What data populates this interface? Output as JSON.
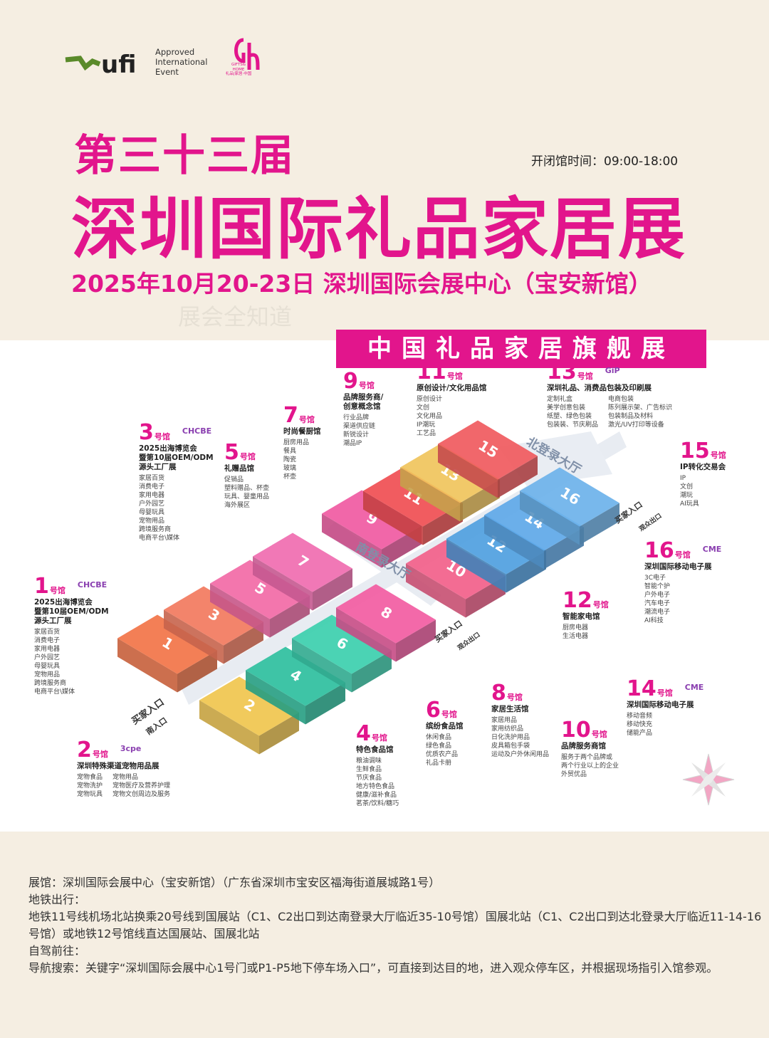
{
  "header": {
    "ufi": "ufi",
    "ufi_text": [
      "Approved",
      "International",
      "Event"
    ],
    "gh_text": [
      "GIFTS&",
      "HOME",
      "礼品|家居·中国"
    ],
    "edition": "第三十三届",
    "title": "深圳国际礼品家居展",
    "hours": "开闭馆时间：09:00-18:00",
    "date_venue": "2025年10月20-23日 深圳国际会展中心（宝安新馆）",
    "watermark": "展会全知道"
  },
  "banner": "中国礼品家居旗舰展",
  "map": {
    "north_hall": "北登录大厅",
    "south_hall": "南登录大厅",
    "buyer_entry": "买家入口",
    "visitor_exit": "观众出口",
    "south_entry": "南入口",
    "blocks": [
      {
        "label": "1",
        "color": "#f27448"
      },
      {
        "label": "3",
        "color": "#f27a5e"
      },
      {
        "label": "5",
        "color": "#f26aa6"
      },
      {
        "label": "7",
        "color": "#f06cb0"
      },
      {
        "label": "9",
        "color": "#f05aa2"
      },
      {
        "label": "11",
        "color": "#f04e52"
      },
      {
        "label": "13",
        "color": "#f0c45c"
      },
      {
        "label": "15",
        "color": "#f05a5e"
      },
      {
        "label": "2",
        "color": "#f0c64e"
      },
      {
        "label": "4",
        "color": "#2ebf9e"
      },
      {
        "label": "6",
        "color": "#3ccfae"
      },
      {
        "label": "8",
        "color": "#f25ca2"
      },
      {
        "label": "10",
        "color": "#f2608a"
      },
      {
        "label": "12",
        "color": "#4f9fe0"
      },
      {
        "label": "14",
        "color": "#5ea8e8"
      },
      {
        "label": "16",
        "color": "#6cb2ea"
      }
    ]
  },
  "hall_suffix": "号馆",
  "halls": [
    {
      "number": "1",
      "badge": "CHCBE",
      "name": [
        "2025出海博览会",
        "暨第10届OEM/ODM",
        "源头工厂展"
      ],
      "columns": [
        [
          "家居百货",
          "消费电子",
          "家用电器",
          "户外园艺",
          "母婴玩具",
          "宠物用品",
          "跨境服务商",
          "电商平台\\媒体"
        ]
      ]
    },
    {
      "number": "2",
      "badge": "3cpe",
      "name": [
        "深圳特殊渠道宠物用品展"
      ],
      "columns": [
        [
          "宠物食品",
          "宠物洗护",
          "宠物玩具"
        ],
        [
          "宠物用品",
          "宠物医疗及营养护理",
          "宠物文创周边及服务"
        ]
      ]
    },
    {
      "number": "3",
      "badge": "CHCBE",
      "name": [
        "2025出海博览会",
        "暨第10届OEM/ODM",
        "源头工厂展"
      ],
      "columns": [
        [
          "家居百货",
          "消费电子",
          "家用电器",
          "户外园艺",
          "母婴玩具",
          "宠物用品",
          "跨境服务商",
          "电商平台\\媒体"
        ]
      ]
    },
    {
      "number": "4",
      "name": [
        "特色食品馆"
      ],
      "columns": [
        [
          "粮油调味",
          "生鲜食品",
          "节庆食品",
          "地方特色食品",
          "健康/滋补食品",
          "茗茶/饮料/糖巧"
        ]
      ]
    },
    {
      "number": "5",
      "name": [
        "礼赠品馆"
      ],
      "columns": [
        [
          "促销品",
          "塑料赠品、杯壶",
          "玩具、婴童用品",
          "海外展区"
        ]
      ]
    },
    {
      "number": "6",
      "name": [
        "缤纷食品馆"
      ],
      "columns": [
        [
          "休闲食品",
          "绿色食品",
          "优质农产品",
          "礼品卡册"
        ]
      ]
    },
    {
      "number": "7",
      "name": [
        "时尚餐厨馆"
      ],
      "columns": [
        [
          "厨房用品",
          "餐具",
          "陶瓷",
          "玻璃",
          "杯壶"
        ]
      ]
    },
    {
      "number": "8",
      "name": [
        "家居生活馆"
      ],
      "columns": [
        [
          "家居用品",
          "家用纺织品",
          "日化洗护用品",
          "皮具箱包手袋",
          "运动及户外休闲用品"
        ]
      ]
    },
    {
      "number": "9",
      "name": [
        "品牌服务商/",
        "创意概念馆"
      ],
      "columns": [
        [
          "行业品牌",
          "渠道供应链",
          "新锐设计",
          "潮品IP"
        ]
      ]
    },
    {
      "number": "10",
      "name": [
        "品牌服务商馆"
      ],
      "columns": [
        [
          "服务于两个品牌或",
          "两个行业以上的企业",
          "外贸优品"
        ]
      ]
    },
    {
      "number": "11",
      "name": [
        "原创设计/文化用品馆"
      ],
      "columns": [
        [
          "原创设计",
          "文创",
          "文化用品",
          "IP潮玩",
          "工艺品"
        ]
      ]
    },
    {
      "number": "12",
      "name": [
        "智能家电馆"
      ],
      "columns": [
        [
          "厨房电器",
          "生活电器"
        ]
      ]
    },
    {
      "number": "13",
      "badge": "GiP",
      "name": [
        "深圳礼品、消费品包装及印刷展"
      ],
      "columns": [
        [
          "定制礼盒",
          "美学创意包装",
          "纸塑、绿色包装",
          "包装装、节庆刷品"
        ],
        [
          "电商包装",
          "陈列展示架、广告标识",
          "包装制品及材料",
          "激光/UV打印等设备"
        ]
      ]
    },
    {
      "number": "14",
      "badge": "CME",
      "name": [
        "深圳国际移动电子展"
      ],
      "columns": [
        [
          "移动音频",
          "移动快充",
          "储能产品"
        ]
      ]
    },
    {
      "number": "15",
      "name": [
        "IP转化交易会"
      ],
      "columns": [
        [
          "IP",
          "文创",
          "潮玩",
          "AI玩具"
        ]
      ]
    },
    {
      "number": "16",
      "badge": "CME",
      "name": [
        "深圳国际移动电子展"
      ],
      "columns": [
        [
          "3C电子",
          "智能个护",
          "户外电子",
          "汽车电子",
          "潮流电子",
          "AI科技"
        ]
      ]
    }
  ],
  "footer": [
    "展馆：深圳国际会展中心（宝安新馆）（广东省深圳市宝安区福海街道展城路1号）",
    "地铁出行：",
    "地铁11号线机场北站换乘20号线到国展站（C1、C2出口到达南登录大厅临近35-10号馆）国展北站（C1、C2出口到达北登录大厅临近11-14-16号馆）或地铁12号馆线直达国展站、国展北站",
    "自驾前往：",
    "导航搜索：关键字“深圳国际会展中心1号门或P1-P5地下停车场入口”，可直接到达目的地，进入观众停车区，并根据现场指引入馆参观。"
  ]
}
